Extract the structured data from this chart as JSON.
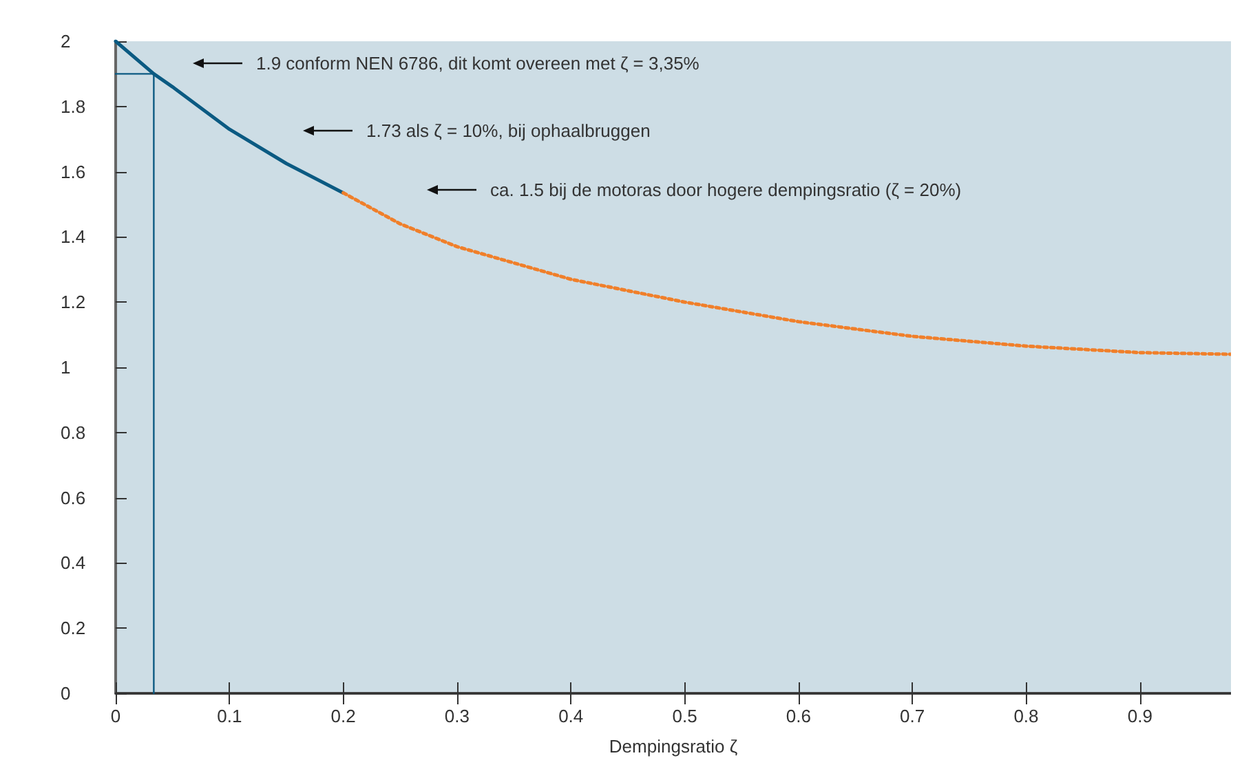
{
  "chart_data": {
    "type": "line",
    "xlabel": "Dempingsratio ζ",
    "xlim": [
      0,
      0.98
    ],
    "xticks": [
      0,
      0.1,
      0.2,
      0.3,
      0.4,
      0.5,
      0.6,
      0.7,
      0.8,
      0.9
    ],
    "ylim": [
      0,
      2
    ],
    "yticks": [
      0,
      0.2,
      0.4,
      0.6,
      0.8,
      1,
      1.2,
      1.4,
      1.6,
      1.8,
      2
    ],
    "grid": false,
    "marker": "none",
    "series": [
      {
        "color": "#0b5a82",
        "line_style": "solid",
        "x": [
          0,
          0.0335,
          0.05,
          0.1,
          0.15,
          0.2
        ],
        "values": [
          2,
          1.9,
          1.86,
          1.73,
          1.625,
          1.535
        ]
      },
      {
        "color": "#f07f2a",
        "line_style": "dotted",
        "x": [
          0.2,
          0.25,
          0.3,
          0.4,
          0.5,
          0.6,
          0.7,
          0.8,
          0.9,
          0.98
        ],
        "values": [
          1.535,
          1.44,
          1.37,
          1.27,
          1.2,
          1.14,
          1.095,
          1.065,
          1.045,
          1.04
        ]
      },
      {
        "color": "#0b5a82",
        "line_style": "solid",
        "x": [
          0,
          0.0335,
          0.0335
        ],
        "values": [
          1.9,
          1.9,
          0
        ]
      }
    ],
    "annotations": [
      "1.9 conform NEN 6786, dit komt overeen met ζ = 3,35%",
      "1.73 als ζ = 10%, bij ophaalbruggen",
      "ca. 1.5 bij de motoras door hogere dempingsratio (ζ = 20%)"
    ]
  }
}
